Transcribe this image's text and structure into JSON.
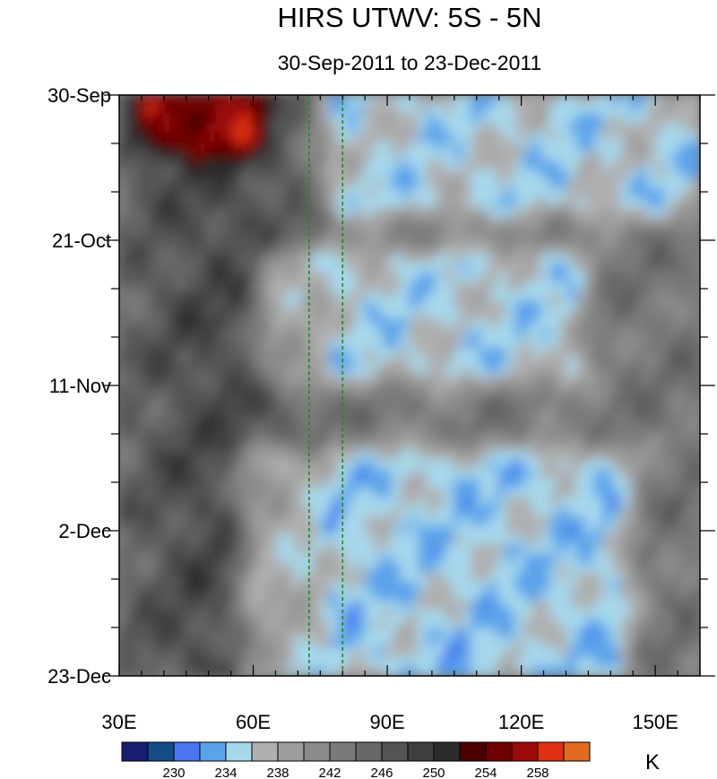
{
  "chart_data": {
    "type": "heatmap",
    "title": "HIRS UTWV: 5S - 5N",
    "subtitle": "30-Sep-2011 to 23-Dec-2011",
    "xlabel": "",
    "ylabel": "",
    "x_range": [
      30,
      160
    ],
    "x_ticks": [
      {
        "value": 30,
        "label": "30E"
      },
      {
        "value": 60,
        "label": "60E"
      },
      {
        "value": 90,
        "label": "90E"
      },
      {
        "value": 120,
        "label": "120E"
      },
      {
        "value": 150,
        "label": "150E"
      }
    ],
    "y_range_days": [
      0,
      84
    ],
    "y_ticks": [
      {
        "day": 0,
        "label": "30-Sep"
      },
      {
        "day": 21,
        "label": "21-Oct"
      },
      {
        "day": 42,
        "label": "11-Nov"
      },
      {
        "day": 63,
        "label": "2-Dec"
      },
      {
        "day": 84,
        "label": "23-Dec"
      }
    ],
    "reference_lines_lon": [
      72.5,
      80
    ],
    "colorbar": {
      "unit": "K",
      "levels": [
        228,
        230,
        232,
        234,
        236,
        238,
        240,
        242,
        244,
        246,
        248,
        250,
        252,
        254,
        256,
        258,
        260
      ],
      "labels": [
        {
          "value": 230,
          "label": "230"
        },
        {
          "value": 234,
          "label": "234"
        },
        {
          "value": 238,
          "label": "238"
        },
        {
          "value": 242,
          "label": "242"
        },
        {
          "value": 246,
          "label": "246"
        },
        {
          "value": 250,
          "label": "250"
        },
        {
          "value": 254,
          "label": "254"
        },
        {
          "value": 258,
          "label": "258"
        }
      ],
      "colors": [
        "#171e72",
        "#144d86",
        "#4a75f0",
        "#5aa2ea",
        "#a6d8ec",
        "#afafaf",
        "#9c9c9c",
        "#8b8b8b",
        "#7a7a7a",
        "#686868",
        "#545454",
        "#3f3f3f",
        "#2b2b2b",
        "#4a0000",
        "#6e0000",
        "#9c0a0a",
        "#e03010",
        "#e06a20"
      ]
    },
    "features": [
      {
        "type": "dry",
        "day": [
          1,
          5
        ],
        "lon": [
          38,
          58
        ],
        "value": 255
      },
      {
        "type": "moist_band",
        "day": [
          1,
          14
        ],
        "lon": [
          80,
          160
        ],
        "value": 233
      },
      {
        "type": "moist_band",
        "day": [
          26,
          38
        ],
        "lon": [
          66,
          130
        ],
        "value": 233
      },
      {
        "type": "moist_band",
        "day": [
          55,
          84
        ],
        "lon": [
          62,
          140
        ],
        "value": 232
      }
    ]
  }
}
